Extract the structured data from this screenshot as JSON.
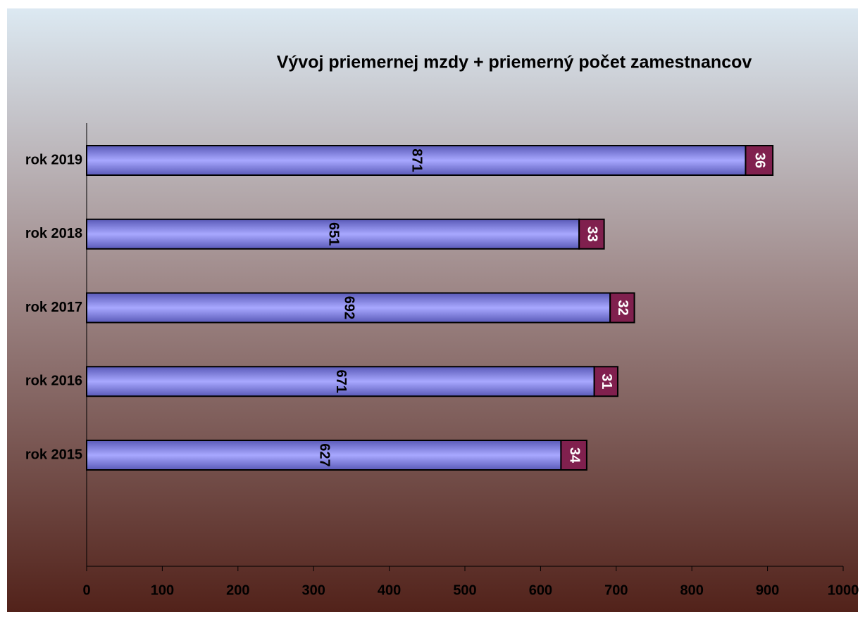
{
  "chart_data": {
    "type": "stacked-horizontal-bar",
    "title": "Vývoj priemernej mzdy + priemerný počet zamestnancov",
    "categories": [
      "rok 2015",
      "rok 2016",
      "rok 2017",
      "rok 2018",
      "rok 2019"
    ],
    "series": [
      {
        "color": "#8484f0",
        "values": [
          627,
          671,
          692,
          651,
          871
        ]
      },
      {
        "color": "#80204e",
        "values": [
          34,
          31,
          32,
          33,
          36
        ]
      }
    ],
    "xlim": [
      0,
      1000
    ],
    "xticks": [
      0,
      100,
      200,
      300,
      400,
      500,
      600,
      700,
      800,
      900,
      1000
    ]
  }
}
